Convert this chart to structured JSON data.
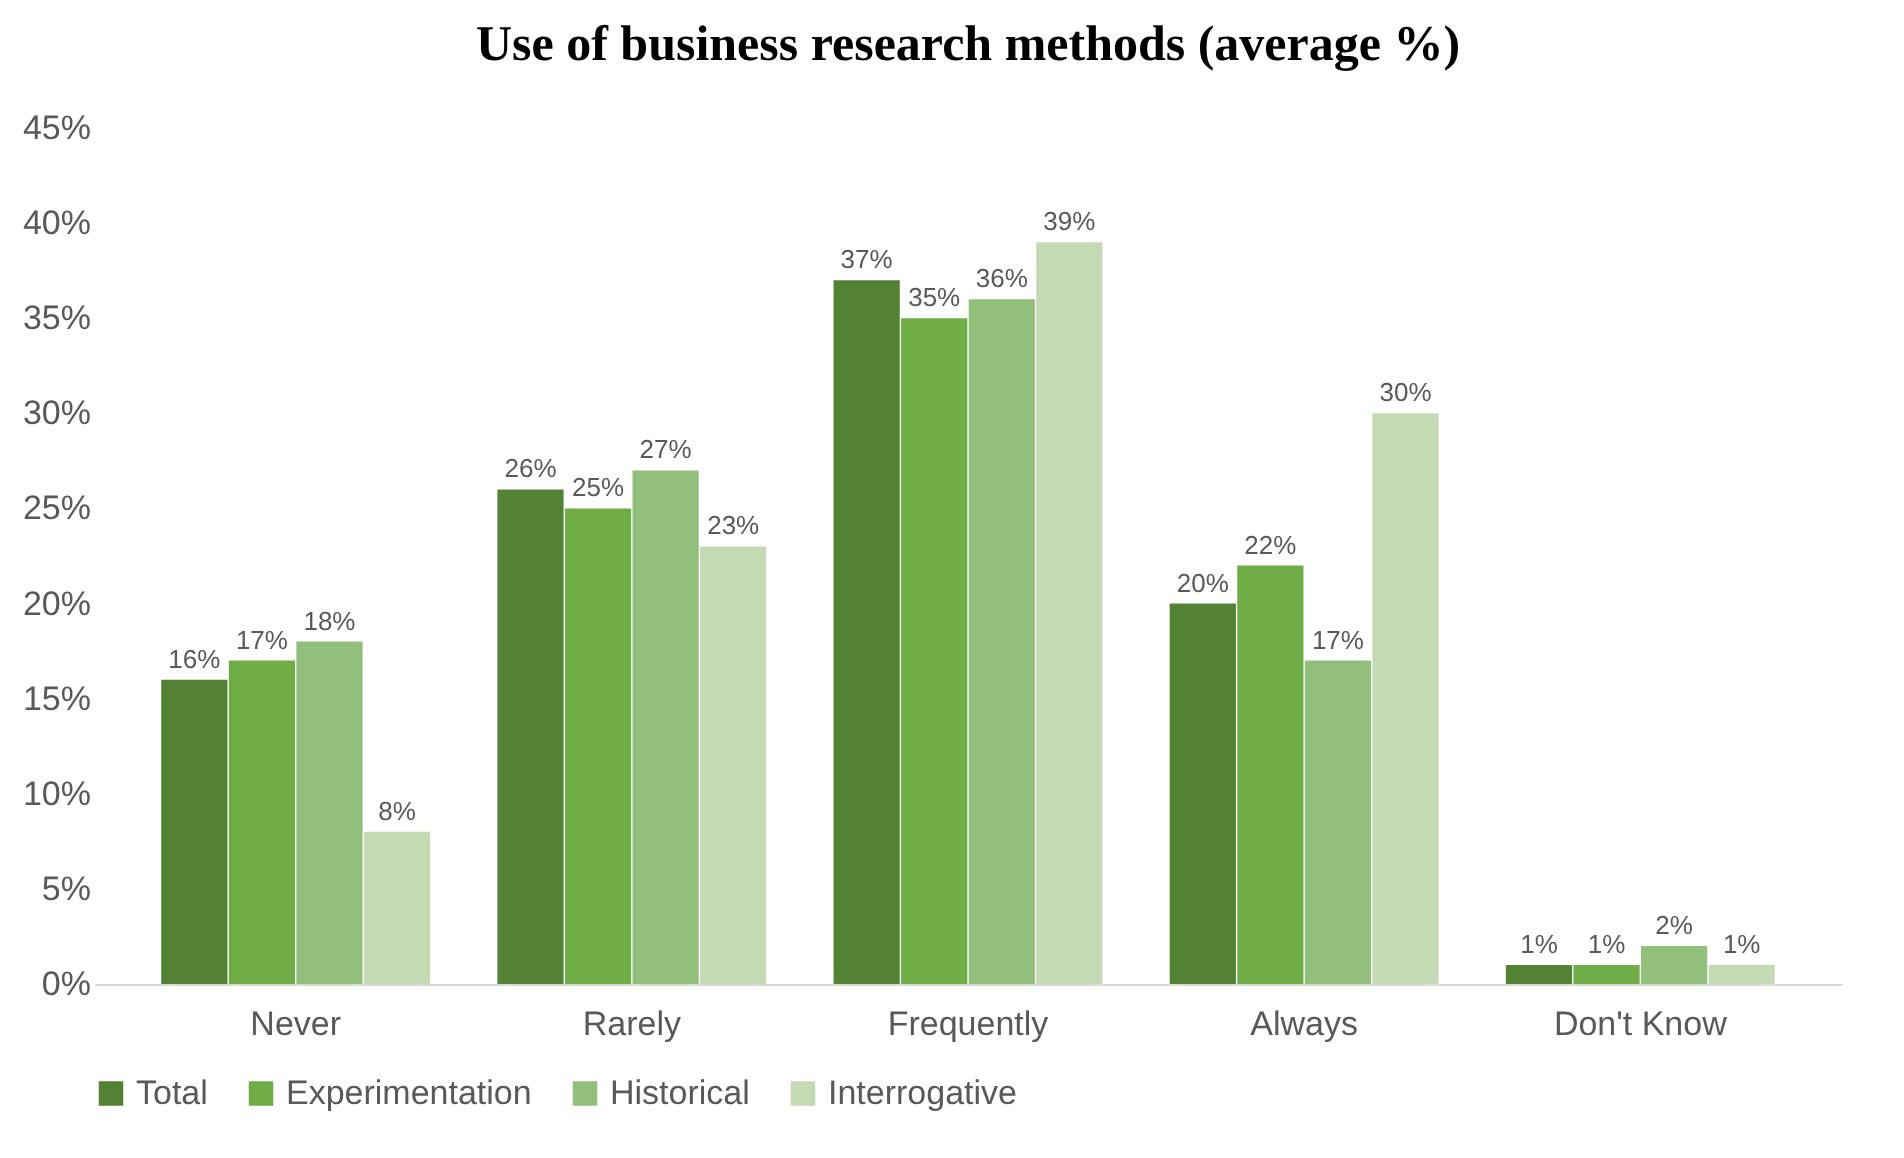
{
  "chart_data": {
    "type": "bar",
    "title": "Use of business research methods (average %)",
    "categories": [
      "Never",
      "Rarely",
      "Frequently",
      "Always",
      "Don't Know"
    ],
    "series": [
      {
        "name": "Total",
        "color": "#548235",
        "values": [
          16,
          26,
          37,
          20,
          1
        ],
        "value_labels": [
          "16%",
          "26%",
          "37%",
          "20%",
          "1%"
        ]
      },
      {
        "name": "Experimentation",
        "color": "#70ad47",
        "values": [
          17,
          25,
          35,
          22,
          1
        ],
        "value_labels": [
          "17%",
          "25%",
          "35%",
          "22%",
          "1%"
        ]
      },
      {
        "name": "Historical",
        "color": "#92bf7c",
        "values": [
          18,
          27,
          36,
          17,
          2
        ],
        "value_labels": [
          "18%",
          "27%",
          "36%",
          "17%",
          "2%"
        ]
      },
      {
        "name": "Interrogative",
        "color": "#c3dab5",
        "values": [
          8,
          23,
          39,
          30,
          1
        ],
        "value_labels": [
          "8%",
          "23%",
          "39%",
          "30%",
          "1%"
        ]
      }
    ],
    "ylim": [
      0,
      45
    ],
    "yticks": [
      {
        "value": 0,
        "label": "0%"
      },
      {
        "value": 5,
        "label": "5%"
      },
      {
        "value": 10,
        "label": "10%"
      },
      {
        "value": 15,
        "label": "15%"
      },
      {
        "value": 20,
        "label": "20%"
      },
      {
        "value": 25,
        "label": "25%"
      },
      {
        "value": 30,
        "label": "30%"
      },
      {
        "value": 35,
        "label": "35%"
      },
      {
        "value": 40,
        "label": "40%"
      },
      {
        "value": 45,
        "label": "45%"
      }
    ],
    "grid": false,
    "legend": "bottom"
  }
}
